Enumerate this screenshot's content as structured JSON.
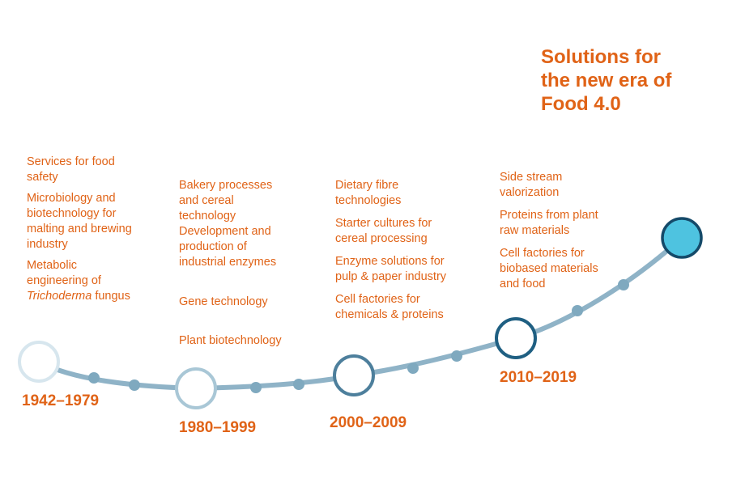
{
  "headline": {
    "lines": [
      "Solutions for",
      "the new era of",
      "Food 4.0"
    ]
  },
  "periods": [
    {
      "year": "1942–1979",
      "items": [
        [
          "Services for food",
          "safety"
        ],
        [
          "Microbiology and",
          "biotechnology for",
          "malting and brewing",
          "industry"
        ],
        [
          "Metabolic",
          "engineering of",
          "Trichoderma fungus"
        ]
      ]
    },
    {
      "year": "1980–1999",
      "items": [
        [
          "Bakery processes",
          "and cereal",
          "technology"
        ],
        [
          "Development and",
          "production of",
          "industrial enzymes"
        ],
        [
          "Gene technology"
        ],
        [
          "Plant biotechnology"
        ]
      ]
    },
    {
      "year": "2000–2009",
      "items": [
        [
          "Dietary fibre",
          "technologies"
        ],
        [
          "Starter cultures for",
          "cereal processing"
        ],
        [
          "Enzyme solutions for",
          "pulp & paper industry"
        ],
        [
          "Cell factories for",
          "chemicals & proteins"
        ]
      ]
    },
    {
      "year": "2010–2019",
      "items": [
        [
          "Side stream",
          "valorization"
        ],
        [
          "Proteins from plant",
          "raw materials"
        ],
        [
          "Cell factories for",
          "biobased materials",
          "and food"
        ]
      ]
    }
  ],
  "colors": {
    "text_orange": "#E06317",
    "curve": "#8FB3C7",
    "dot": "#7FA9BF",
    "circle_1": "#D7E6EE",
    "circle_2": "#A9C7D6",
    "circle_3": "#4D7F9C",
    "circle_4": "#1F5F82",
    "end_fill": "#4EC3E0",
    "end_stroke": "#154A69"
  }
}
